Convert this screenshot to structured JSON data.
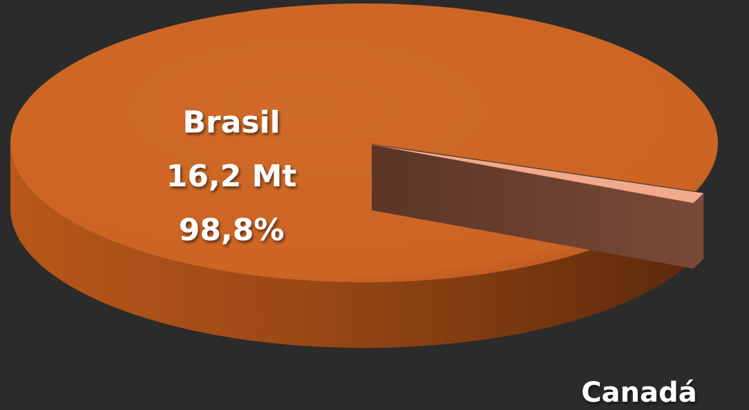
{
  "chart_data": {
    "type": "pie",
    "style": "3d-exploded",
    "unit": "Mt",
    "series": [
      {
        "slices": [
          {
            "label": "Brasil",
            "value": 16.2,
            "value_text": "16,2 Mt",
            "percent": 98.8,
            "percent_text": "98,8%",
            "color": "#cf6626"
          },
          {
            "label": "Canadá",
            "value": 0.2,
            "percent": 1.2,
            "color": "#f0a98a",
            "exploded": true
          }
        ]
      }
    ]
  },
  "colors": {
    "background": "#2b2b2b",
    "brasil_top": "#cf6626",
    "brasil_side": "#9c4a17",
    "canada_top": "#f0a98a",
    "canada_side": "#6b4030",
    "label_text": "#ffffff"
  }
}
